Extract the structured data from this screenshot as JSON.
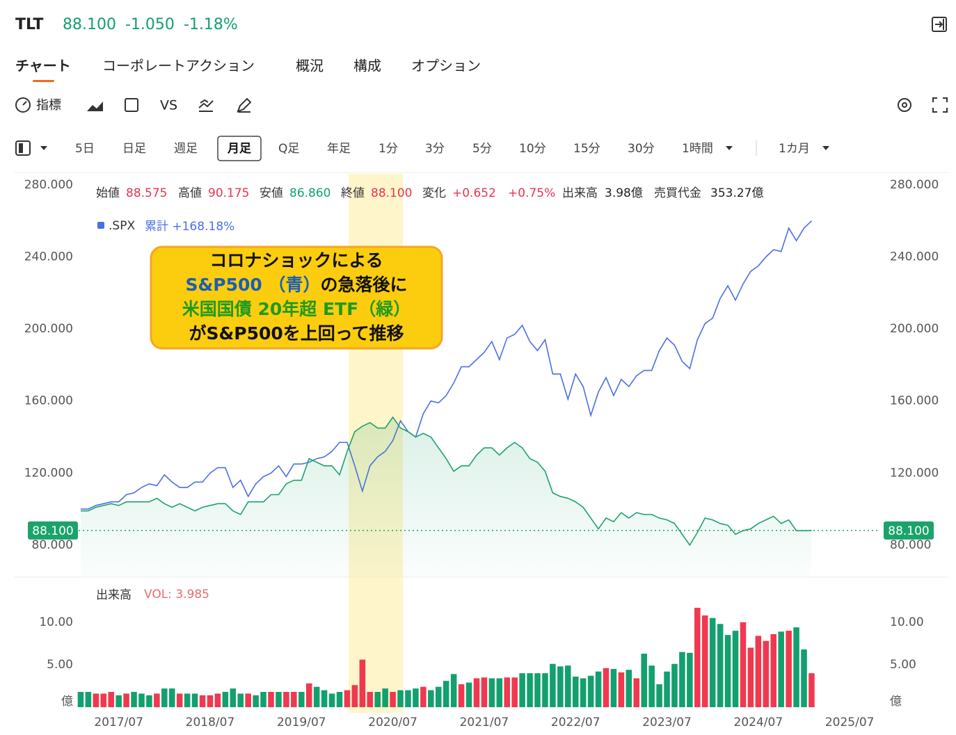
{
  "header": {
    "symbol": "TLT",
    "price": "88.100",
    "change": "-1.050",
    "change_pct": "-1.18%"
  },
  "tabs": [
    "チャート",
    "コーポレートアクション",
    "概況",
    "構成",
    "オプション"
  ],
  "toolbar": [
    "指標",
    "VS"
  ],
  "periods": [
    "5日",
    "日足",
    "週足",
    "月足",
    "Q足",
    "年足",
    "1分",
    "3分",
    "5分",
    "10分",
    "15分",
    "30分",
    "1時間",
    "1カ月"
  ],
  "info": [
    {
      "label": "始値",
      "value": "88.575"
    },
    {
      "label": "高値",
      "value": "90.175"
    },
    {
      "label": "安値",
      "value": "86.860"
    },
    {
      "label": "終値",
      "value": "88.100"
    },
    {
      "label": "変化",
      "value": "+0.652"
    },
    {
      "label": "",
      "value": "+0.75%"
    },
    {
      "label": "出来高",
      "value": "3.98億"
    },
    {
      "label": "売買代金",
      "value": "353.27億"
    }
  ],
  "chart_data": [
    {
      "type": "line",
      "legend_stat": "累計 +168.18%",
      "annotation": [
        [
          "コロナショックによる"
        ],
        [
          "S&P500 （青）",
          "の急落後に"
        ],
        [
          "米国国債 20年超 ETF（緑）"
        ],
        [
          "がS&P500を上回って推移"
        ]
      ],
      "annotation_colors": [
        [
          "#111111"
        ],
        [
          "#1a5fb4",
          "#111111"
        ],
        [
          "#1e9a1e"
        ],
        [
          "#111111"
        ]
      ],
      "x": [
        "2017/02",
        "2017/03",
        "2017/04",
        "2017/05",
        "2017/06",
        "2017/07",
        "2017/08",
        "2017/09",
        "2017/10",
        "2017/11",
        "2017/12",
        "2018/01",
        "2018/02",
        "2018/03",
        "2018/04",
        "2018/05",
        "2018/06",
        "2018/07",
        "2018/08",
        "2018/09",
        "2018/10",
        "2018/11",
        "2018/12",
        "2019/01",
        "2019/02",
        "2019/03",
        "2019/04",
        "2019/05",
        "2019/06",
        "2019/07",
        "2019/08",
        "2019/09",
        "2019/10",
        "2019/11",
        "2019/12",
        "2020/01",
        "2020/02",
        "2020/03",
        "2020/04",
        "2020/05",
        "2020/06",
        "2020/07",
        "2020/08",
        "2020/09",
        "2020/10",
        "2020/11",
        "2020/12",
        "2021/01",
        "2021/02",
        "2021/03",
        "2021/04",
        "2021/05",
        "2021/06",
        "2021/07",
        "2021/08",
        "2021/09",
        "2021/10",
        "2021/11",
        "2021/12",
        "2022/01",
        "2022/02",
        "2022/03",
        "2022/04",
        "2022/05",
        "2022/06",
        "2022/07",
        "2022/08",
        "2022/09",
        "2022/10",
        "2022/11",
        "2022/12",
        "2023/01",
        "2023/02",
        "2023/03",
        "2023/04",
        "2023/05",
        "2023/06",
        "2023/07",
        "2023/08",
        "2023/09",
        "2023/10",
        "2023/11",
        "2023/12",
        "2024/01",
        "2024/02",
        "2024/03",
        "2024/04",
        "2024/05",
        "2024/06",
        "2024/07",
        "2024/08",
        "2024/09",
        "2024/10",
        "2024/11",
        "2024/12",
        "2025/01",
        "2025/02"
      ],
      "xlim": [
        "2017/01",
        "2025/10"
      ],
      "xticks": [
        "2017/07",
        "2018/07",
        "2019/07",
        "2020/07",
        "2021/07",
        "2022/07",
        "2023/07",
        "2024/07",
        "2025/07"
      ],
      "ylim": [
        62.2,
        284.2
      ],
      "yticks": [
        {
          "value": 80,
          "label": "80.000"
        },
        {
          "value": 120,
          "label": "120.000"
        },
        {
          "value": 160,
          "label": "160.000"
        },
        {
          "value": 200,
          "label": "200.000"
        },
        {
          "value": 240,
          "label": "240.000"
        },
        {
          "value": 280,
          "label": "280.000"
        }
      ],
      "grid": false,
      "price_line": {
        "value": 88.1,
        "label": "88.100"
      },
      "series": [
        {
          "name": ".SPX",
          "color": "#4a6fe3",
          "values": [
            100,
            100,
            102,
            103,
            104,
            104,
            108,
            109,
            112,
            114,
            113,
            119,
            115,
            112,
            112,
            115,
            115,
            120,
            123,
            123,
            112,
            116,
            107,
            114,
            118,
            120,
            124,
            118,
            125,
            125,
            126,
            128,
            129,
            132,
            137,
            137,
            124,
            110,
            124,
            129,
            132,
            138,
            149,
            143,
            140,
            153,
            160,
            159,
            163,
            170,
            179,
            179,
            183,
            187,
            193,
            183,
            195,
            197,
            202,
            193,
            188,
            194,
            175,
            175,
            161,
            175,
            168,
            152,
            165,
            173,
            163,
            172,
            168,
            174,
            177,
            177,
            188,
            195,
            191,
            182,
            178,
            194,
            203,
            206,
            217,
            224,
            216,
            225,
            232,
            235,
            240,
            244,
            243,
            256,
            249,
            256,
            260
          ]
        },
        {
          "color": "#1aa36a",
          "area": true,
          "values": [
            99,
            99,
            101,
            102,
            103,
            102,
            104,
            104,
            104,
            104,
            106,
            103,
            101,
            103,
            101,
            99,
            101,
            102,
            103,
            103,
            99,
            97,
            104,
            104,
            104,
            108,
            108,
            114,
            116,
            116,
            128,
            126,
            124,
            124,
            119,
            132,
            143,
            146,
            148,
            145,
            145,
            151,
            145,
            143,
            140,
            142,
            140,
            134,
            128,
            121,
            124,
            124,
            130,
            134,
            134,
            130,
            134,
            137,
            134,
            128,
            126,
            121,
            109,
            107,
            106,
            104,
            101,
            95,
            89,
            95,
            93,
            98,
            95,
            98,
            97,
            97,
            95,
            94,
            92,
            86,
            80,
            87,
            95,
            94,
            92,
            91,
            86,
            88,
            89,
            92,
            94,
            96,
            92,
            94,
            88,
            88,
            88.1
          ]
        }
      ]
    },
    {
      "type": "bar",
      "title": "出来高",
      "subtitle": "VOL: 3.985",
      "ylim": [
        0,
        14.9
      ],
      "yticks": [
        {
          "value": 0,
          "label": "億"
        },
        {
          "value": 5,
          "label": "5.00"
        },
        {
          "value": 10,
          "label": "10.00"
        }
      ],
      "up_color": "#f0384f",
      "down_color": "#12a06e",
      "values": [
        1.8,
        1.8,
        1.6,
        1.6,
        1.8,
        1.4,
        1.6,
        1.8,
        1.6,
        1.4,
        1.6,
        2.2,
        2.2,
        1.6,
        1.6,
        1.6,
        1.4,
        1.4,
        1.6,
        1.8,
        2.2,
        1.6,
        1.6,
        1.4,
        1.8,
        1.8,
        1.8,
        1.8,
        1.8,
        1.8,
        2.8,
        2.4,
        2.0,
        1.6,
        1.8,
        2.0,
        2.6,
        5.6,
        1.8,
        1.8,
        2.2,
        1.8,
        2.0,
        2.0,
        2.2,
        2.4,
        2.0,
        2.4,
        3.1,
        3.9,
        2.7,
        2.9,
        3.4,
        3.5,
        3.4,
        3.4,
        3.5,
        3.5,
        4.0,
        4.0,
        4.0,
        4.0,
        5.1,
        4.8,
        4.9,
        3.6,
        3.4,
        3.7,
        4.2,
        4.6,
        4.5,
        4.1,
        4.4,
        3.4,
        6.3,
        4.9,
        2.7,
        4.2,
        5.1,
        6.5,
        6.4,
        11.7,
        10.8,
        10.5,
        9.8,
        8.5,
        9.0,
        10.0,
        7.0,
        8.4,
        7.8,
        8.6,
        8.9,
        9.0,
        9.4,
        6.8,
        4.0
      ]
    }
  ]
}
